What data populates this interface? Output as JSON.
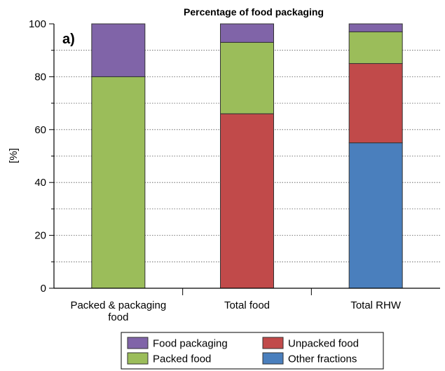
{
  "chart_data": {
    "type": "bar",
    "stacked": true,
    "title": "Percentage of food packaging",
    "panel_label": "a)",
    "ylabel": "[%]",
    "xlabel": "",
    "ylim": [
      0,
      100
    ],
    "yticks": [
      0,
      20,
      40,
      60,
      80,
      100
    ],
    "grid": "horizontal dotted",
    "categories": [
      [
        "Packed & packaging",
        "food"
      ],
      [
        "Total food"
      ],
      [
        "Total RHW"
      ]
    ],
    "series": [
      {
        "name": "Other fractions",
        "color": "#4a7fbd",
        "values": [
          0,
          0,
          55
        ]
      },
      {
        "name": "Unpacked food",
        "color": "#c14a4a",
        "values": [
          0,
          66,
          30
        ]
      },
      {
        "name": "Packed food",
        "color": "#9bbd5a",
        "values": [
          80,
          27,
          12
        ]
      },
      {
        "name": "Food packaging",
        "color": "#8064a8",
        "values": [
          20,
          7,
          3
        ]
      }
    ],
    "legend": {
      "placement": "bottom-center",
      "order": [
        "Food packaging",
        "Unpacked food",
        "Packed food",
        "Other fractions"
      ]
    }
  }
}
